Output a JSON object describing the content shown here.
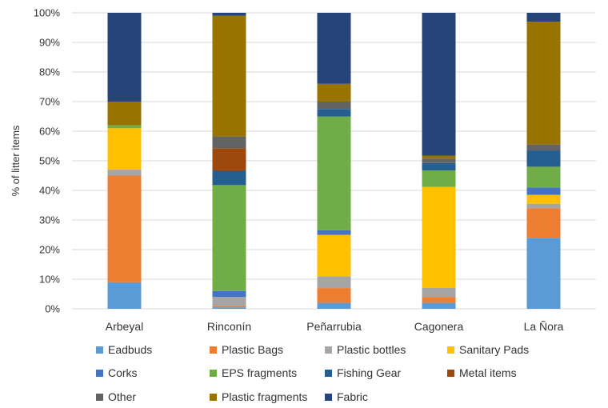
{
  "chart_data": {
    "type": "bar",
    "stacked": true,
    "percent": true,
    "title": "",
    "xlabel": "",
    "ylabel": "% of litter items",
    "ylim": [
      0,
      100
    ],
    "yticks": [
      "0%",
      "10%",
      "20%",
      "30%",
      "40%",
      "50%",
      "60%",
      "70%",
      "80%",
      "90%",
      "100%"
    ],
    "grid": true,
    "legend": "bottom",
    "categories": [
      "Arbeyal",
      "Rinconín",
      "Peñarrubia",
      "Cagonera",
      "La Ñora"
    ],
    "series": [
      {
        "name": "Eadbuds",
        "color": "#5b9bd5",
        "values": [
          9,
          0.5,
          2,
          2,
          24
        ]
      },
      {
        "name": "Plastic Bags",
        "color": "#ed7d31",
        "values": [
          36,
          0.5,
          5,
          2,
          10
        ]
      },
      {
        "name": "Plastic bottles",
        "color": "#a5a5a5",
        "values": [
          2,
          3,
          4,
          3,
          1.5
        ]
      },
      {
        "name": "Sanitary Pads",
        "color": "#ffc000",
        "values": [
          14,
          0,
          14,
          34,
          3
        ]
      },
      {
        "name": "Corks",
        "color": "#4472c4",
        "values": [
          0,
          2,
          1.5,
          0,
          2.5
        ]
      },
      {
        "name": "EPS fragments",
        "color": "#70ad47",
        "values": [
          1,
          36,
          38.5,
          5.5,
          7
        ]
      },
      {
        "name": "Fishing Gear",
        "color": "#255e91",
        "values": [
          0,
          5,
          2.5,
          2.5,
          5.5
        ]
      },
      {
        "name": "Metal items",
        "color": "#9e480e",
        "values": [
          0,
          7.5,
          0,
          0,
          0
        ]
      },
      {
        "name": "Other",
        "color": "#636363",
        "values": [
          0,
          4,
          2.5,
          1.5,
          2
        ]
      },
      {
        "name": "Plastic fragments",
        "color": "#997300",
        "values": [
          8,
          41,
          6,
          1,
          41.5
        ]
      },
      {
        "name": "Fabric",
        "color": "#264478",
        "values": [
          30,
          1,
          24,
          48,
          3
        ]
      }
    ]
  }
}
